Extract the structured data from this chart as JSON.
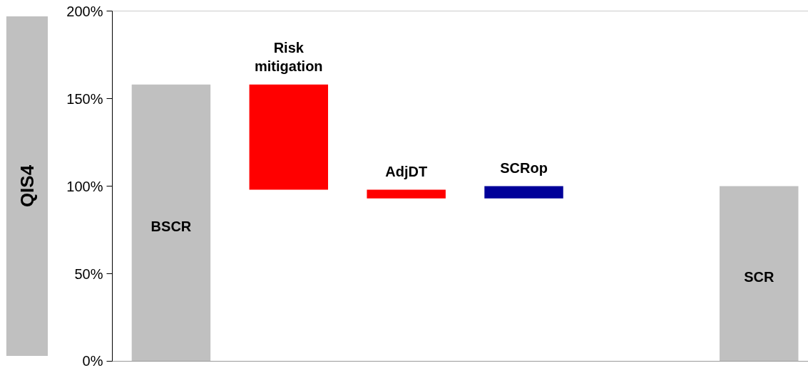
{
  "chart_data": {
    "type": "bar",
    "ylabel": "QIS4",
    "categories": [
      "BSCR",
      "Risk mitigation",
      "AdjDT",
      "SCRop",
      null,
      "SCR"
    ],
    "base": [
      0,
      158,
      98,
      93,
      null,
      0
    ],
    "values": [
      158,
      -60,
      -5,
      7,
      null,
      100
    ],
    "colors": [
      "#c0c0c0",
      "#ff0000",
      "#ff0000",
      "#000099",
      null,
      "#c0c0c0"
    ],
    "ylim": [
      0,
      200
    ],
    "yticks": [
      {
        "value": 0,
        "label": "0%"
      },
      {
        "value": 50,
        "label": "50%"
      },
      {
        "value": 100,
        "label": "100%"
      },
      {
        "value": 150,
        "label": "150%"
      },
      {
        "value": 200,
        "label": "200%"
      }
    ],
    "tick_labels": "y",
    "grid": false
  }
}
